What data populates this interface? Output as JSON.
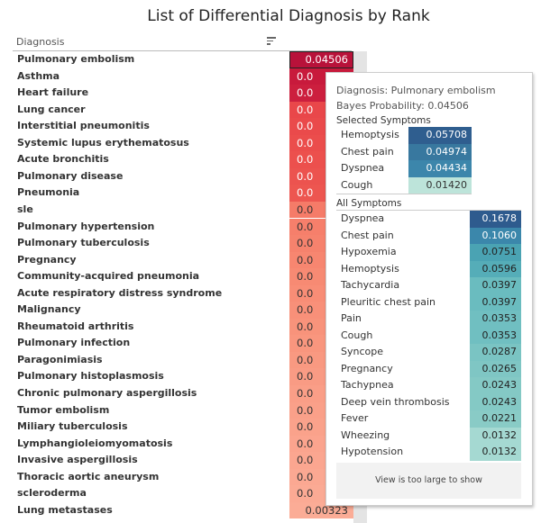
{
  "title": "List of Differential Diagnosis by Rank",
  "column_header": "Diagnosis",
  "diagnoses": [
    {
      "name": "Pulmonary embolism",
      "value": "0.04506",
      "color": "#b8123a",
      "selected": true
    },
    {
      "name": "Asthma",
      "value": "0.0",
      "color": "#c81a3c"
    },
    {
      "name": "Heart failure",
      "value": "0.0",
      "color": "#cc1f3e"
    },
    {
      "name": "Lung cancer",
      "value": "0.0",
      "color": "#e9474a"
    },
    {
      "name": "Interstitial pneumonitis",
      "value": "0.0",
      "color": "#ea4a4b"
    },
    {
      "name": "Systemic lupus erythematosus",
      "value": "0.0",
      "color": "#eb4d4c"
    },
    {
      "name": "Acute bronchitis",
      "value": "0.0",
      "color": "#ec504d"
    },
    {
      "name": "Pulmonary disease",
      "value": "0.0",
      "color": "#ec534f"
    },
    {
      "name": "Pneumonia",
      "value": "0.0",
      "color": "#ed5650"
    },
    {
      "name": "sle",
      "value": "0.0",
      "color": "#f57b68"
    },
    {
      "name": "Pulmonary hypertension",
      "value": "0.0",
      "color": "#f67f6b"
    },
    {
      "name": "Pulmonary tuberculosis",
      "value": "0.0",
      "color": "#f6826d"
    },
    {
      "name": "Pregnancy",
      "value": "0.0",
      "color": "#f78670"
    },
    {
      "name": "Community-acquired pneumonia",
      "value": "0.0",
      "color": "#f78a73"
    },
    {
      "name": "Acute respiratory distress syndrome",
      "value": "0.0",
      "color": "#f88d76"
    },
    {
      "name": "Malignancy",
      "value": "0.0",
      "color": "#f89079"
    },
    {
      "name": "Rheumatoid arthritis",
      "value": "0.0",
      "color": "#f8937b"
    },
    {
      "name": "Pulmonary infection",
      "value": "0.0",
      "color": "#f9967e"
    },
    {
      "name": "Paragonimiasis",
      "value": "0.0",
      "color": "#f99981"
    },
    {
      "name": "Pulmonary histoplasmosis",
      "value": "0.0",
      "color": "#f99b84"
    },
    {
      "name": "Chronic pulmonary aspergillosis",
      "value": "0.0",
      "color": "#fa9e87"
    },
    {
      "name": "Tumor embolism",
      "value": "0.0",
      "color": "#faa089"
    },
    {
      "name": "Miliary tuberculosis",
      "value": "0.0",
      "color": "#faa28b"
    },
    {
      "name": "Lymphangioleiomyomatosis",
      "value": "0.0",
      "color": "#fba48e"
    },
    {
      "name": "Invasive aspergillosis",
      "value": "0.0",
      "color": "#fba690"
    },
    {
      "name": "Thoracic aortic aneurysm",
      "value": "0.0",
      "color": "#fba892"
    },
    {
      "name": "scleroderma",
      "value": "0.0",
      "color": "#fbaa94"
    },
    {
      "name": "Lung metastases",
      "value": "0.00323",
      "color": "#fbac96"
    }
  ],
  "tooltip": {
    "diagnosis_line": "Diagnosis: Pulmonary embolism",
    "probability_line": "Bayes Probability: 0.04506",
    "selected_title": "Selected Symptoms",
    "selected": [
      {
        "name": "Hemoptysis",
        "value": "0.05708",
        "color": "#2f5e8f",
        "text": "#fff"
      },
      {
        "name": "Chest pain",
        "value": "0.04974",
        "color": "#38789f",
        "text": "#fff"
      },
      {
        "name": "Dyspnea",
        "value": "0.04434",
        "color": "#3c86ab",
        "text": "#fff"
      },
      {
        "name": "Cough",
        "value": "0.01420",
        "color": "#bde4da",
        "text": "#333"
      }
    ],
    "all_title": "All Symptoms",
    "all": [
      {
        "name": "Dyspnea",
        "value": "0.1678",
        "color": "#2e5b8e",
        "text": "#fff"
      },
      {
        "name": "Chest pain",
        "value": "0.1060",
        "color": "#3b87ab",
        "text": "#fff"
      },
      {
        "name": "Hypoxemia",
        "value": "0.0751",
        "color": "#4aa3b3",
        "text": "#222"
      },
      {
        "name": "Hemoptysis",
        "value": "0.0596",
        "color": "#55adb8",
        "text": "#222"
      },
      {
        "name": "Tachycardia",
        "value": "0.0397",
        "color": "#6abcbf",
        "text": "#222"
      },
      {
        "name": "Pleuritic chest pain",
        "value": "0.0397",
        "color": "#6abcbf",
        "text": "#222"
      },
      {
        "name": "Pain",
        "value": "0.0353",
        "color": "#70bfc1",
        "text": "#222"
      },
      {
        "name": "Cough",
        "value": "0.0353",
        "color": "#70bfc1",
        "text": "#222"
      },
      {
        "name": "Syncope",
        "value": "0.0287",
        "color": "#7ac4c3",
        "text": "#222"
      },
      {
        "name": "Pregnancy",
        "value": "0.0265",
        "color": "#7fc6c4",
        "text": "#222"
      },
      {
        "name": "Tachypnea",
        "value": "0.0243",
        "color": "#84c9c5",
        "text": "#222"
      },
      {
        "name": "Deep vein thrombosis",
        "value": "0.0243",
        "color": "#84c9c5",
        "text": "#222"
      },
      {
        "name": "Fever",
        "value": "0.0221",
        "color": "#89cbc6",
        "text": "#222"
      },
      {
        "name": "Wheezing",
        "value": "0.0132",
        "color": "#a5d9d2",
        "text": "#222"
      },
      {
        "name": "Hypotension",
        "value": "0.0132",
        "color": "#a5d9d2",
        "text": "#222"
      }
    ],
    "too_large": "View is too large to show"
  }
}
